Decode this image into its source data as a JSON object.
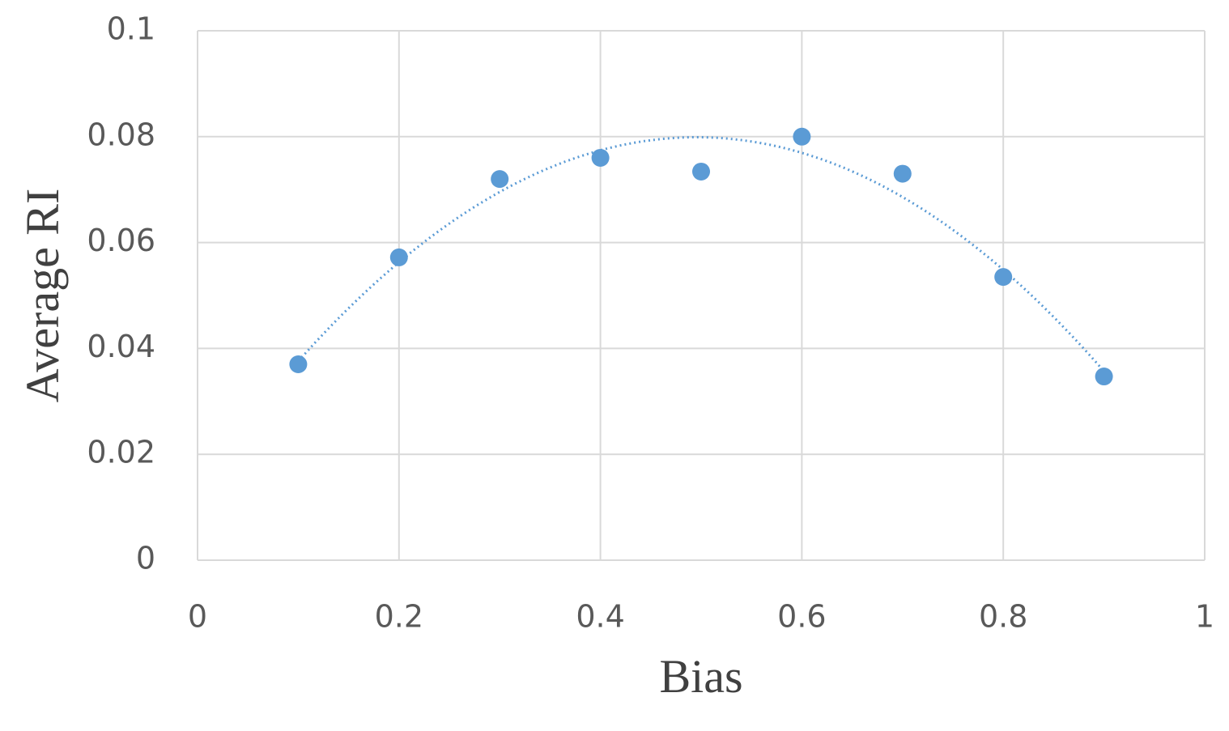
{
  "chart_data": {
    "type": "scatter",
    "xlabel": "Bias",
    "ylabel": "Average  RI",
    "series": [
      {
        "color": "#5b9bd5",
        "x": [
          0.1,
          0.2,
          0.3,
          0.4,
          0.5,
          0.6,
          0.7,
          0.8,
          0.9
        ],
        "values": [
          0.037,
          0.0572,
          0.072,
          0.076,
          0.0734,
          0.08,
          0.073,
          0.0535,
          0.0347
        ]
      }
    ],
    "trendline": {
      "kind": "polynomial",
      "order": 2
    },
    "xlim": [
      0,
      1
    ],
    "xticks": [
      0,
      0.2,
      0.4,
      0.6,
      0.8,
      1
    ],
    "ylim": [
      0,
      0.1
    ],
    "yticks": [
      0,
      0.02,
      0.04,
      0.06,
      0.08,
      0.1
    ],
    "grid": true
  }
}
